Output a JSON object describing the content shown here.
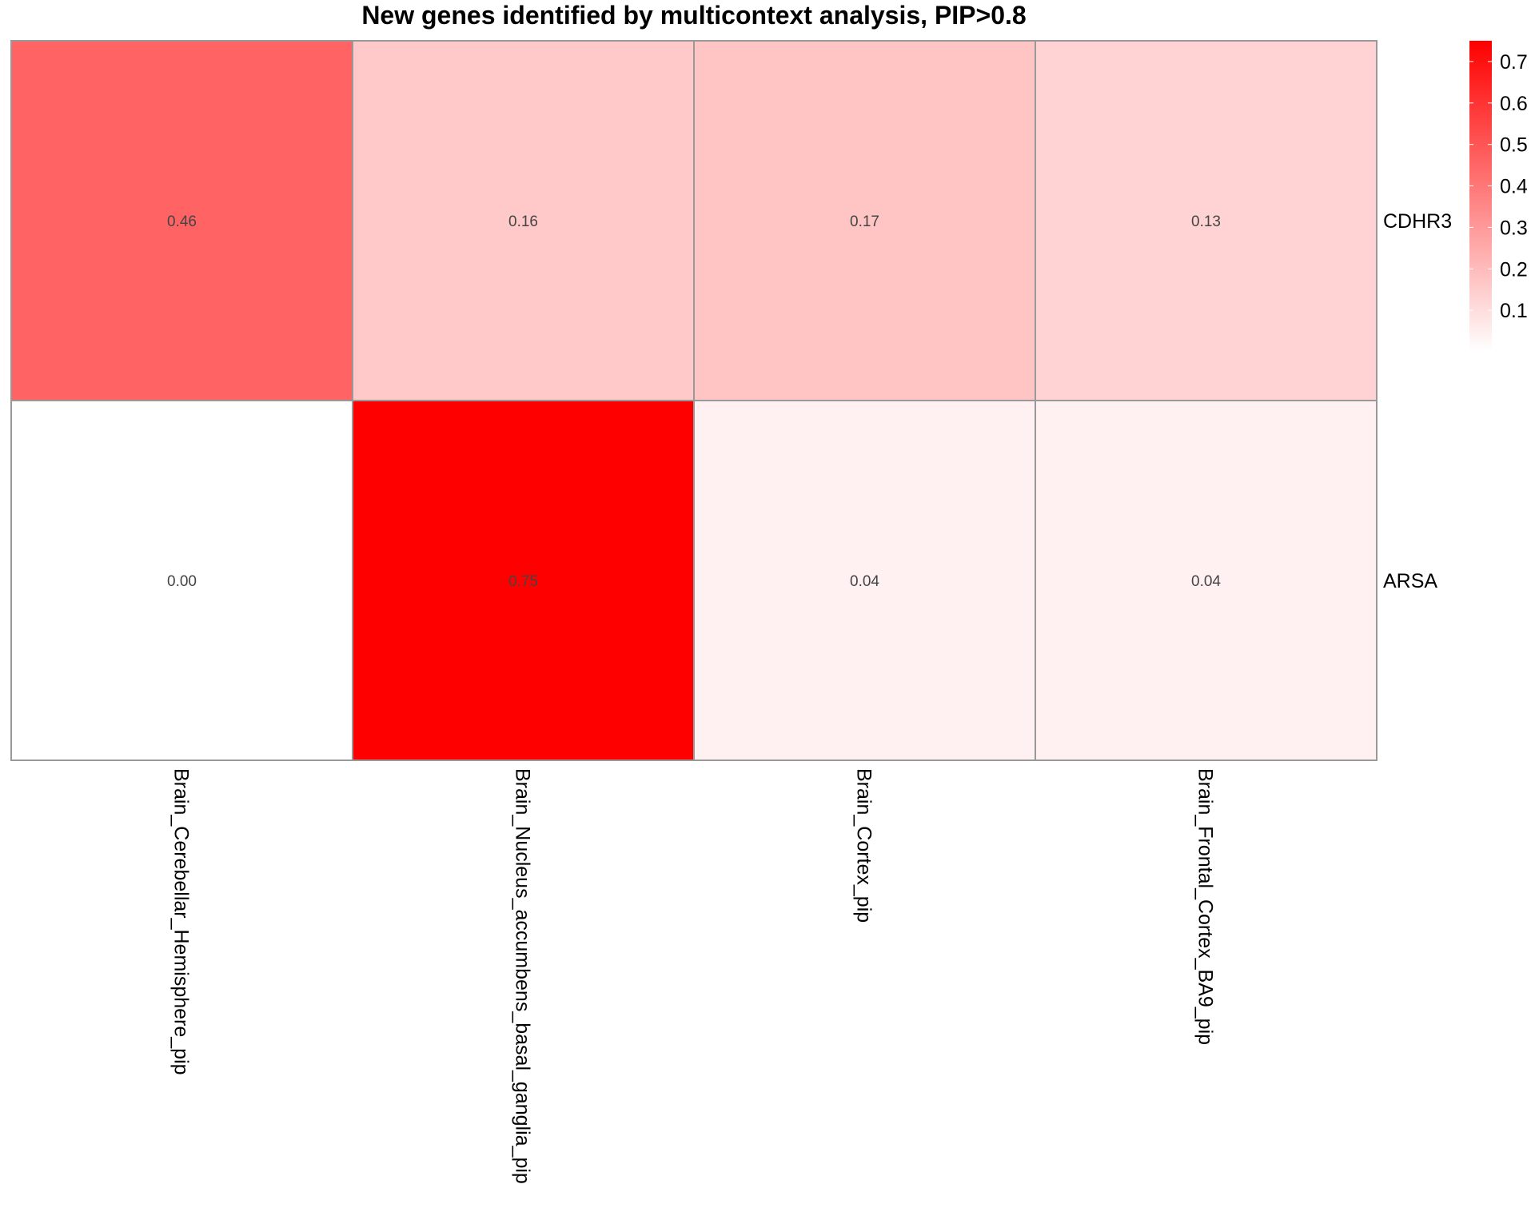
{
  "chart_data": {
    "type": "heatmap",
    "title": "New genes identified by multicontext analysis, PIP>0.8",
    "rows": [
      "CDHR3",
      "ARSA"
    ],
    "columns": [
      "Brain_Cerebellar_Hemisphere_pip",
      "Brain_Nucleus_accumbens_basal_ganglia_pip",
      "Brain_Cortex_pip",
      "Brain_Frontal_Cortex_BA9_pip"
    ],
    "values": [
      [
        0.46,
        0.16,
        0.17,
        0.13
      ],
      [
        0.0,
        0.75,
        0.04,
        0.04
      ]
    ],
    "cell_labels": [
      [
        "0.46",
        "0.16",
        "0.17",
        "0.13"
      ],
      [
        "0.00",
        "0.75",
        "0.04",
        "0.04"
      ]
    ],
    "color_scale": {
      "low": "#ffffff",
      "high": "#ff0000",
      "min": 0,
      "max": 0.75
    },
    "legend": {
      "ticks": [
        0.1,
        0.2,
        0.3,
        0.4,
        0.5,
        0.6,
        0.7
      ],
      "tick_labels": [
        "0.1",
        "0.2",
        "0.3",
        "0.4",
        "0.5",
        "0.6",
        "0.7"
      ],
      "placement": "right"
    },
    "grid_color": "#999999"
  }
}
